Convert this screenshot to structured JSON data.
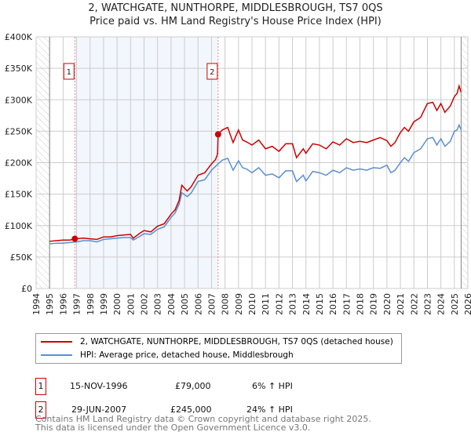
{
  "chart_data": {
    "type": "line",
    "title": "2, WATCHGATE, NUNTHORPE, MIDDLESBROUGH, TS7 0QS",
    "subtitle": "Price paid vs. HM Land Registry's House Price Index (HPI)",
    "xlim": [
      1994,
      2026
    ],
    "ylim": [
      0,
      400000
    ],
    "x_ticks": [
      "1994",
      "1995",
      "1996",
      "1997",
      "1998",
      "1999",
      "2000",
      "2001",
      "2002",
      "2003",
      "2004",
      "2005",
      "2006",
      "2007",
      "2008",
      "2009",
      "2010",
      "2011",
      "2012",
      "2013",
      "2014",
      "2015",
      "2016",
      "2017",
      "2018",
      "2019",
      "2020",
      "2021",
      "2022",
      "2023",
      "2024",
      "2025",
      "2026"
    ],
    "y_ticks": [
      {
        "v": 0,
        "label": "£0"
      },
      {
        "v": 50000,
        "label": "£50K"
      },
      {
        "v": 100000,
        "label": "£100K"
      },
      {
        "v": 150000,
        "label": "£150K"
      },
      {
        "v": 200000,
        "label": "£200K"
      },
      {
        "v": 250000,
        "label": "£250K"
      },
      {
        "v": 300000,
        "label": "£300K"
      },
      {
        "v": 350000,
        "label": "£350K"
      },
      {
        "v": 400000,
        "label": "£400K"
      }
    ],
    "grid": true,
    "shaded_range": [
      1996.87,
      2007.49
    ],
    "hatched_before": 1995,
    "hatched_after": 2025.5,
    "series": [
      {
        "name": "2, WATCHGATE, NUNTHORPE, MIDDLESBROUGH, TS7 0QS (detached house)",
        "color": "#cc0000",
        "x": [
          1995,
          1995.5,
          1996,
          1996.5,
          1996.87,
          1997.5,
          1998,
          1998.5,
          1999,
          1999.5,
          2000,
          2000.5,
          2001,
          2001.2,
          2001.7,
          2002,
          2002.5,
          2003,
          2003.5,
          2004,
          2004.3,
          2004.6,
          2004.8,
          2005.2,
          2005.5,
          2006,
          2006.5,
          2007,
          2007.3,
          2007.45,
          2007.49,
          2007.8,
          2008.2,
          2008.6,
          2009,
          2009.3,
          2009.6,
          2010,
          2010.5,
          2011,
          2011.5,
          2012,
          2012.5,
          2013,
          2013.3,
          2013.8,
          2014,
          2014.5,
          2015,
          2015.5,
          2016,
          2016.5,
          2017,
          2017.5,
          2018,
          2018.5,
          2019,
          2019.5,
          2020,
          2020.3,
          2020.6,
          2021,
          2021.3,
          2021.6,
          2022,
          2022.5,
          2023,
          2023.4,
          2023.7,
          2024,
          2024.3,
          2024.7,
          2025,
          2025.2,
          2025.35,
          2025.5
        ],
        "y": [
          75000,
          76000,
          77000,
          77000,
          79000,
          80000,
          79000,
          78000,
          82000,
          82000,
          84000,
          85000,
          86000,
          80000,
          88000,
          92000,
          90000,
          99000,
          103000,
          118000,
          125000,
          140000,
          164000,
          155000,
          162000,
          180000,
          184000,
          198000,
          205000,
          214000,
          245000,
          252000,
          256000,
          232000,
          252000,
          236000,
          233000,
          228000,
          236000,
          222000,
          226000,
          218000,
          230000,
          230000,
          208000,
          222000,
          215000,
          230000,
          228000,
          222000,
          233000,
          228000,
          238000,
          232000,
          234000,
          232000,
          236000,
          240000,
          235000,
          226000,
          232000,
          248000,
          256000,
          250000,
          265000,
          272000,
          294000,
          296000,
          283000,
          294000,
          280000,
          290000,
          305000,
          310000,
          322000,
          312000
        ]
      },
      {
        "name": "HPI: Average price, detached house, Middlesbrough",
        "color": "#5b8fd0",
        "x": [
          1995,
          1995.5,
          1996,
          1996.5,
          1997,
          1997.5,
          1998,
          1998.5,
          1999,
          1999.5,
          2000,
          2000.5,
          2001,
          2001.2,
          2001.7,
          2002,
          2002.5,
          2003,
          2003.5,
          2004,
          2004.3,
          2004.6,
          2004.8,
          2005.2,
          2005.5,
          2006,
          2006.5,
          2007,
          2007.49,
          2007.8,
          2008.2,
          2008.6,
          2009,
          2009.3,
          2009.6,
          2010,
          2010.5,
          2011,
          2011.5,
          2012,
          2012.5,
          2013,
          2013.3,
          2013.8,
          2014,
          2014.5,
          2015,
          2015.5,
          2016,
          2016.5,
          2017,
          2017.5,
          2018,
          2018.5,
          2019,
          2019.5,
          2020,
          2020.3,
          2020.6,
          2021,
          2021.3,
          2021.6,
          2022,
          2022.5,
          2023,
          2023.4,
          2023.7,
          2024,
          2024.3,
          2024.7,
          2025,
          2025.2,
          2025.35,
          2025.5
        ],
        "y": [
          71000,
          72000,
          72000,
          73000,
          74000,
          76000,
          76000,
          74000,
          78000,
          79000,
          80000,
          81000,
          81000,
          77000,
          83000,
          87000,
          86000,
          94000,
          98000,
          113000,
          120000,
          134000,
          152000,
          146000,
          152000,
          170000,
          173000,
          188000,
          198000,
          204000,
          207000,
          188000,
          203000,
          192000,
          190000,
          184000,
          192000,
          180000,
          182000,
          176000,
          187000,
          187000,
          170000,
          180000,
          171000,
          186000,
          184000,
          180000,
          188000,
          184000,
          192000,
          188000,
          190000,
          188000,
          192000,
          191000,
          196000,
          184000,
          188000,
          200000,
          208000,
          202000,
          216000,
          222000,
          238000,
          240000,
          228000,
          238000,
          226000,
          234000,
          250000,
          252000,
          260000,
          252000
        ]
      }
    ],
    "sales": [
      {
        "id": "1",
        "x": 1996.87,
        "y": 79000
      },
      {
        "id": "2",
        "x": 2007.49,
        "y": 245000
      }
    ]
  },
  "legend": {
    "red": "2, WATCHGATE, NUNTHORPE, MIDDLESBROUGH, TS7 0QS (detached house)",
    "blue": "HPI: Average price, detached house, Middlesbrough"
  },
  "transactions": [
    {
      "id": "1",
      "date": "15-NOV-1996",
      "price": "£79,000",
      "hpi": "6% ↑ HPI"
    },
    {
      "id": "2",
      "date": "29-JUN-2007",
      "price": "£245,000",
      "hpi": "24% ↑ HPI"
    }
  ],
  "footer": {
    "line1": "Contains HM Land Registry data © Crown copyright and database right 2025.",
    "line2": "This data is licensed under the Open Government Licence v3.0."
  }
}
